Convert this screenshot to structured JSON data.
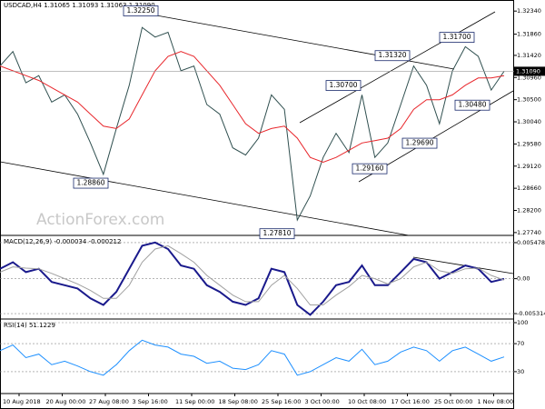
{
  "chart_data": [
    {
      "type": "line",
      "title": "USDCAD,H4 1.31065 1.31093 1.31063 1.31090",
      "watermark": "ActionForex.com",
      "series": [
        {
          "name": "Price",
          "color": "#2f4f4f",
          "values": [
            1.312,
            1.315,
            1.3085,
            1.31,
            1.3045,
            1.306,
            1.302,
            1.296,
            1.2895,
            1.299,
            1.308,
            1.32,
            1.318,
            1.319,
            1.311,
            1.312,
            1.304,
            1.302,
            1.295,
            1.2935,
            1.297,
            1.306,
            1.303,
            1.28,
            1.285,
            1.293,
            1.298,
            1.294,
            1.306,
            1.293,
            1.296,
            1.304,
            1.312,
            1.308,
            1.3,
            1.311,
            1.316,
            1.314,
            1.307,
            1.3109
          ]
        },
        {
          "name": "MA",
          "color": "#e8262b",
          "values": [
            1.312,
            1.311,
            1.31,
            1.309,
            1.3075,
            1.306,
            1.3045,
            1.302,
            1.2995,
            1.299,
            1.301,
            1.306,
            1.311,
            1.314,
            1.315,
            1.314,
            1.311,
            1.308,
            1.304,
            1.3,
            1.298,
            1.299,
            1.2995,
            1.297,
            1.293,
            1.292,
            1.293,
            1.2945,
            1.296,
            1.2965,
            1.297,
            1.299,
            1.303,
            1.305,
            1.305,
            1.306,
            1.308,
            1.3095,
            1.3095,
            1.31
          ]
        }
      ],
      "last": {
        "value": 1.3109,
        "label": "1.31090"
      },
      "annotations": [
        {
          "value": 1.3225,
          "label": "1.32250"
        },
        {
          "value": 1.2886,
          "label": "1.28860"
        },
        {
          "value": 1.2781,
          "label": "1.27810"
        },
        {
          "value": 1.307,
          "label": "1.30700"
        },
        {
          "value": 1.3132,
          "label": "1.31320"
        },
        {
          "value": 1.317,
          "label": "1.31700"
        },
        {
          "value": 1.2969,
          "label": "1.29690"
        },
        {
          "value": 1.2916,
          "label": "1.29160"
        },
        {
          "value": 1.3048,
          "label": "1.30480"
        }
      ],
      "ylim": [
        1.277,
        1.3257
      ],
      "yticks": [
        {
          "value": 1.3234,
          "label": "1.32340"
        },
        {
          "value": 1.3186,
          "label": "1.31860"
        },
        {
          "value": 1.3142,
          "label": "1.31420"
        },
        {
          "value": 1.3096,
          "label": "1.30960"
        },
        {
          "value": 1.305,
          "label": "1.30500"
        },
        {
          "value": 1.3004,
          "label": "1.30040"
        },
        {
          "value": 1.2958,
          "label": "1.29580"
        },
        {
          "value": 1.2912,
          "label": "1.29120"
        },
        {
          "value": 1.2866,
          "label": "1.28660"
        },
        {
          "value": 1.282,
          "label": "1.28200"
        },
        {
          "value": 1.2774,
          "label": "1.27740"
        }
      ]
    },
    {
      "type": "line",
      "title": "MACD(12,26,9) -0.000034 -0.000212",
      "series": [
        {
          "name": "MACD",
          "color": "#1a1a8c",
          "values": [
            0.0015,
            0.0025,
            0.001,
            0.0015,
            -0.0005,
            -0.001,
            -0.0015,
            -0.003,
            -0.004,
            -0.002,
            0.0015,
            0.005,
            0.0055,
            0.0045,
            0.002,
            0.0015,
            -0.001,
            -0.002,
            -0.0035,
            -0.004,
            -0.003,
            0.0015,
            0.001,
            -0.004,
            -0.0055,
            -0.0035,
            -0.001,
            -0.0005,
            0.002,
            -0.001,
            -0.001,
            0.001,
            0.003,
            0.0025,
            0.0,
            0.001,
            0.002,
            0.0015,
            -0.0005,
            -3.4e-05
          ]
        },
        {
          "name": "Signal",
          "color": "#a0a0a0",
          "values": [
            0.001,
            0.0018,
            0.0016,
            0.0015,
            0.0008,
            0.0,
            -0.0008,
            -0.0018,
            -0.003,
            -0.003,
            -0.001,
            0.0025,
            0.0045,
            0.005,
            0.0038,
            0.0025,
            0.0005,
            -0.001,
            -0.0025,
            -0.0035,
            -0.0035,
            -0.001,
            0.0005,
            -0.0015,
            -0.004,
            -0.004,
            -0.0025,
            -0.0012,
            0.0005,
            0.0,
            -0.0008,
            0.0,
            0.0018,
            0.0025,
            0.0012,
            0.0008,
            0.0015,
            0.0016,
            0.0005,
            -0.000212
          ]
        }
      ],
      "ylim": [
        -0.006,
        0.00644
      ],
      "yticks": [
        {
          "value": 0.005478,
          "label": "0.005478"
        },
        {
          "value": 0,
          "label": "0.00"
        },
        {
          "value": -0.005314,
          "label": "-0.005314"
        }
      ]
    },
    {
      "type": "line",
      "title": "RSI(14) 51.1229",
      "series": [
        {
          "name": "RSI",
          "color": "#1e90ff",
          "values": [
            60,
            68,
            50,
            55,
            40,
            45,
            38,
            30,
            25,
            40,
            60,
            75,
            68,
            65,
            55,
            52,
            42,
            45,
            35,
            33,
            40,
            60,
            55,
            25,
            30,
            40,
            50,
            45,
            62,
            40,
            45,
            58,
            65,
            60,
            45,
            60,
            65,
            55,
            45,
            51
          ]
        }
      ],
      "ylim": [
        0,
        100
      ],
      "yticks": [
        100,
        70,
        30
      ],
      "x_labels": [
        "10 Aug 2018",
        "20 Aug 00:00",
        "27 Aug 08:00",
        "3 Sep 16:00",
        "11 Sep 00:00",
        "18 Sep 08:00",
        "25 Sep 16:00",
        "3 Oct 00:00",
        "10 Oct 08:00",
        "17 Oct 16:00",
        "25 Oct 00:00",
        "1 Nov 08:00"
      ]
    }
  ]
}
